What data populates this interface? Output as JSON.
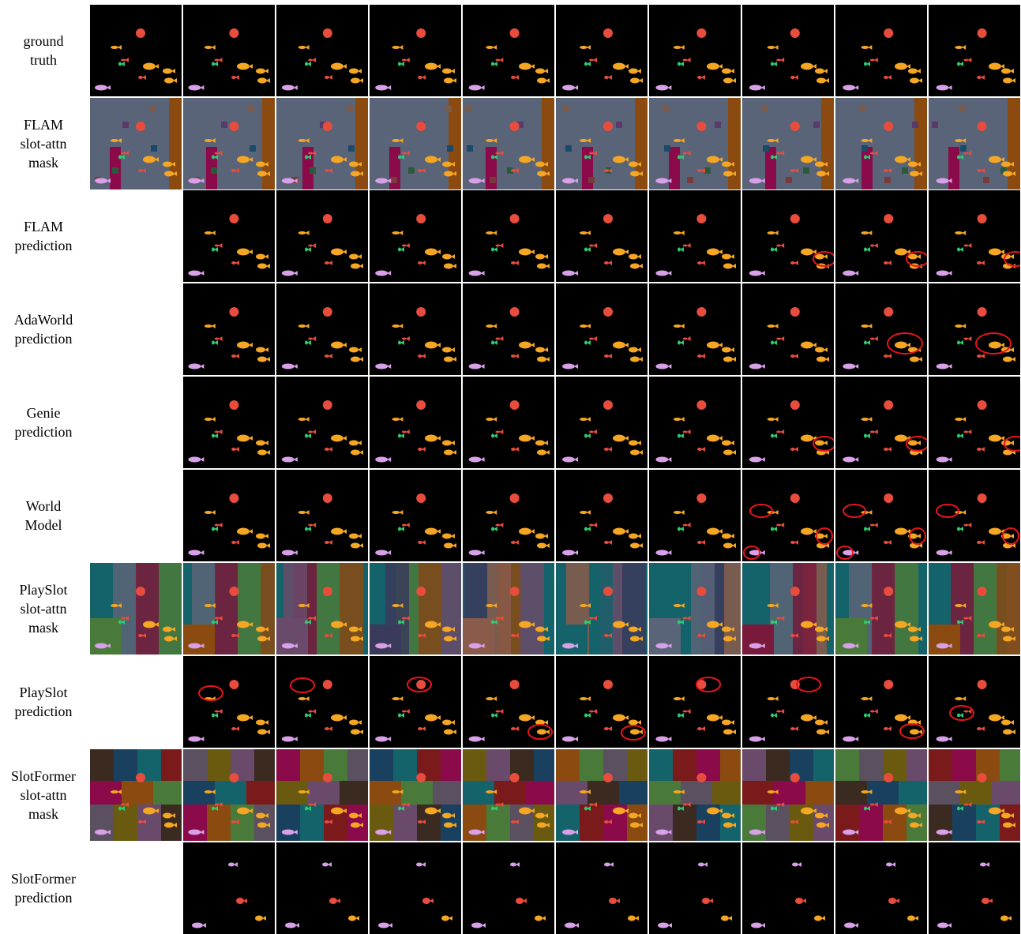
{
  "figure": {
    "rows": [
      {
        "label": "ground\ntruth",
        "type": "scene",
        "frames": [
          1,
          1,
          1,
          1,
          1,
          1,
          1,
          1,
          1,
          1
        ]
      },
      {
        "label": "FLAM\nslot-attn\nmask",
        "type": "mask_flam",
        "frames": [
          1,
          1,
          1,
          1,
          1,
          1,
          1,
          1,
          1,
          1
        ]
      },
      {
        "label": "FLAM\nprediction",
        "type": "scene",
        "frames": [
          0,
          1,
          1,
          1,
          1,
          1,
          1,
          1,
          1,
          1
        ]
      },
      {
        "label": "AdaWorld\nprediction",
        "type": "scene",
        "frames": [
          0,
          1,
          1,
          1,
          1,
          1,
          1,
          1,
          1,
          1
        ]
      },
      {
        "label": "Genie\nprediction",
        "type": "scene",
        "frames": [
          0,
          1,
          1,
          1,
          1,
          1,
          1,
          1,
          1,
          1
        ]
      },
      {
        "label": "World\nModel",
        "type": "scene",
        "frames": [
          0,
          1,
          1,
          1,
          1,
          1,
          1,
          1,
          1,
          1
        ]
      },
      {
        "label": "PlaySlot\nslot-attn\nmask",
        "type": "mask_play",
        "frames": [
          1,
          1,
          1,
          1,
          1,
          1,
          1,
          1,
          1,
          1
        ]
      },
      {
        "label": "PlaySlot\nprediction",
        "type": "scene",
        "frames": [
          0,
          1,
          1,
          1,
          1,
          1,
          1,
          1,
          1,
          1
        ]
      },
      {
        "label": "SlotFormer\nslot-attn\nmask",
        "type": "mask_slotformer",
        "frames": [
          1,
          1,
          1,
          1,
          1,
          1,
          1,
          1,
          1,
          1
        ]
      },
      {
        "label": "SlotFormer\nprediction",
        "type": "scene_sparse",
        "frames": [
          0,
          1,
          1,
          1,
          1,
          1,
          1,
          1,
          1,
          1
        ]
      }
    ],
    "colors": {
      "background": "#000000",
      "divider": "#ffffff",
      "highlight_circle": "#e8141c",
      "fish_orange": "#f5a623",
      "fish_red": "#e84c3d",
      "fish_pink": "#d8a0e8",
      "fish_green": "#2ecc71",
      "mask_gray": "#5a6478",
      "mask_brown": "#8a4a10",
      "mask_magenta": "#8a0a4a"
    }
  }
}
